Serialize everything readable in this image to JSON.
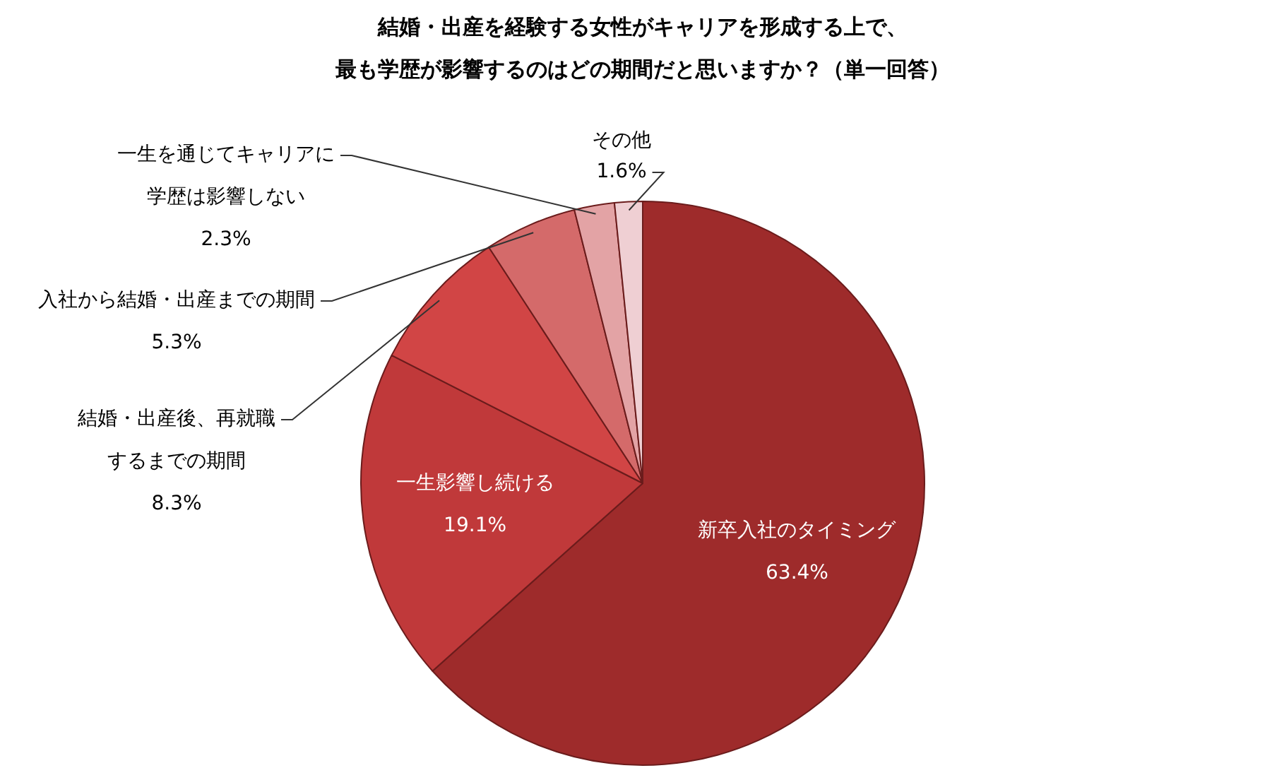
{
  "chart_data": {
    "type": "pie",
    "title": "結婚・出産を経験する女性がキャリアを形成する上で、最も学歴が影響するのはどの期間だと思いますか？（単一回答）",
    "categories": [
      "新卒入社のタイミング",
      "一生影響し続ける",
      "結婚・出産後、再就職するまでの期間",
      "入社から結婚・出産までの期間",
      "一生を通じてキャリアに学歴は影響しない",
      "その他"
    ],
    "values": [
      63.4,
      19.1,
      8.3,
      5.3,
      2.3,
      1.6
    ],
    "colors": [
      "#9e2b2b",
      "#c0393a",
      "#d14545",
      "#d46a6a",
      "#e3a3a5",
      "#efcfd3"
    ],
    "value_labels": [
      "63.4%",
      "19.1%",
      "8.3%",
      "5.3%",
      "2.3%",
      "1.6%"
    ],
    "legend": false
  }
}
